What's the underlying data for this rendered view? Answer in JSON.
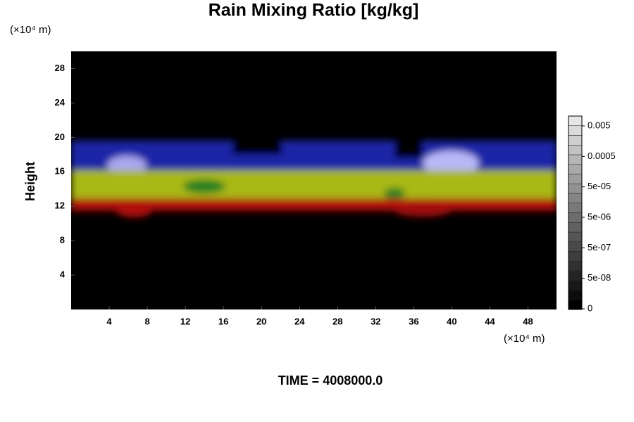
{
  "chart_data": {
    "type": "volume-render",
    "title": "Rain Mixing Ratio [kg/kg]",
    "y_label": "Height",
    "x_unit": "(×10⁴ m)",
    "y_unit": "(×10⁴ m)",
    "footer": "TIME = 4008000.0",
    "xlim": [
      0,
      51
    ],
    "xticks": [
      4,
      8,
      12,
      16,
      20,
      24,
      28,
      32,
      36,
      40,
      44,
      48
    ],
    "ylim": [
      0,
      30
    ],
    "yticks": [
      4,
      8,
      12,
      16,
      20,
      24,
      28
    ],
    "colorbar_ticks": [
      0.005,
      0.0005,
      {
        "value": 5e-05,
        "label": "5e-05"
      },
      {
        "value": 5e-06,
        "label": "5e-06"
      },
      {
        "value": 5e-07,
        "label": "5e-07"
      },
      {
        "value": 5e-08,
        "label": "5e-08"
      },
      0
    ]
  }
}
